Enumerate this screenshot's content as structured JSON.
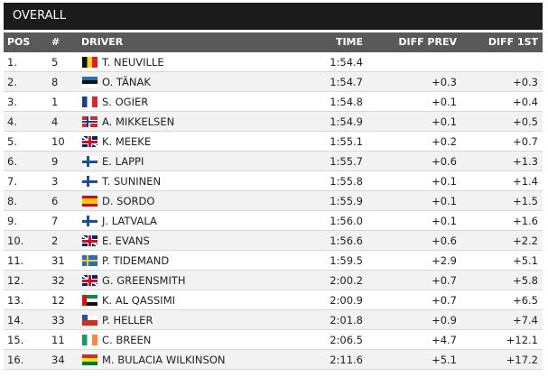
{
  "header": {
    "title": "OVERALL"
  },
  "table": {
    "columns": [
      "POS",
      "#",
      "DRIVER",
      "TIME",
      "DIFF PREV",
      "DIFF 1ST"
    ],
    "rows": [
      {
        "pos": "1.",
        "num": "5",
        "driver": "T. NEUVILLE",
        "time": "1:54.4"
      },
      {
        "pos": "2.",
        "num": "8",
        "driver": "O. TÄNAK",
        "time": "1:54.7",
        "diff_prev": "+0.3",
        "diff_1st": "+0.3"
      },
      {
        "pos": "3.",
        "num": "1",
        "driver": "S. OGIER",
        "time": "1:54.8",
        "diff_prev": "+0.1",
        "diff_1st": "+0.4"
      },
      {
        "pos": "4.",
        "num": "4",
        "driver": "A. MIKKELSEN",
        "time": "1:54.9",
        "diff_prev": "+0.1",
        "diff_1st": "+0.5"
      },
      {
        "pos": "5.",
        "num": "10",
        "driver": "K. MEEKE",
        "time": "1:55.1",
        "diff_prev": "+0.2",
        "diff_1st": "+0.7"
      },
      {
        "pos": "6.",
        "num": "9",
        "driver": "E. LAPPI",
        "time": "1:55.7",
        "diff_prev": "+0.6",
        "diff_1st": "+1.3"
      },
      {
        "pos": "7.",
        "num": "3",
        "driver": "T. SUNINEN",
        "time": "1:55.8",
        "diff_prev": "+0.1",
        "diff_1st": "+1.4"
      },
      {
        "pos": "8.",
        "num": "6",
        "driver": "D. SORDO",
        "time": "1:55.9",
        "diff_prev": "+0.1",
        "diff_1st": "+1.5"
      },
      {
        "pos": "9.",
        "num": "7",
        "driver": "J. LATVALA",
        "time": "1:56.0",
        "diff_prev": "+0.1",
        "diff_1st": "+1.6"
      },
      {
        "pos": "10.",
        "num": "2",
        "driver": "E. EVANS",
        "time": "1:56.6",
        "diff_prev": "+0.6",
        "diff_1st": "+2.2"
      },
      {
        "pos": "11.",
        "num": "31",
        "driver": "P. TIDEMAND",
        "time": "1:59.5",
        "diff_prev": "+2.9",
        "diff_1st": "+5.1"
      },
      {
        "pos": "12.",
        "num": "32",
        "driver": "G. GREENSMITH",
        "time": "2:00.2",
        "diff_prev": "+0.7",
        "diff_1st": "+5.8"
      },
      {
        "pos": "13.",
        "num": "12",
        "driver": "K. AL QASSIMI",
        "time": "2:00.9",
        "diff_prev": "+0.7",
        "diff_1st": "+6.5"
      },
      {
        "pos": "14.",
        "num": "33",
        "driver": "P. HELLER",
        "time": "2:01.8",
        "diff_prev": "+0.9",
        "diff_1st": "+7.4"
      },
      {
        "pos": "15.",
        "num": "11",
        "driver": "C. BREEN",
        "time": "2:06.5",
        "diff_prev": "+4.7",
        "diff_1st": "+12.1"
      },
      {
        "pos": "16.",
        "num": "34",
        "driver": "M. BULACIA WILKINSON",
        "time": "2:11.6",
        "diff_prev": "+5.1",
        "diff_1st": "+17.2"
      }
    ]
  }
}
